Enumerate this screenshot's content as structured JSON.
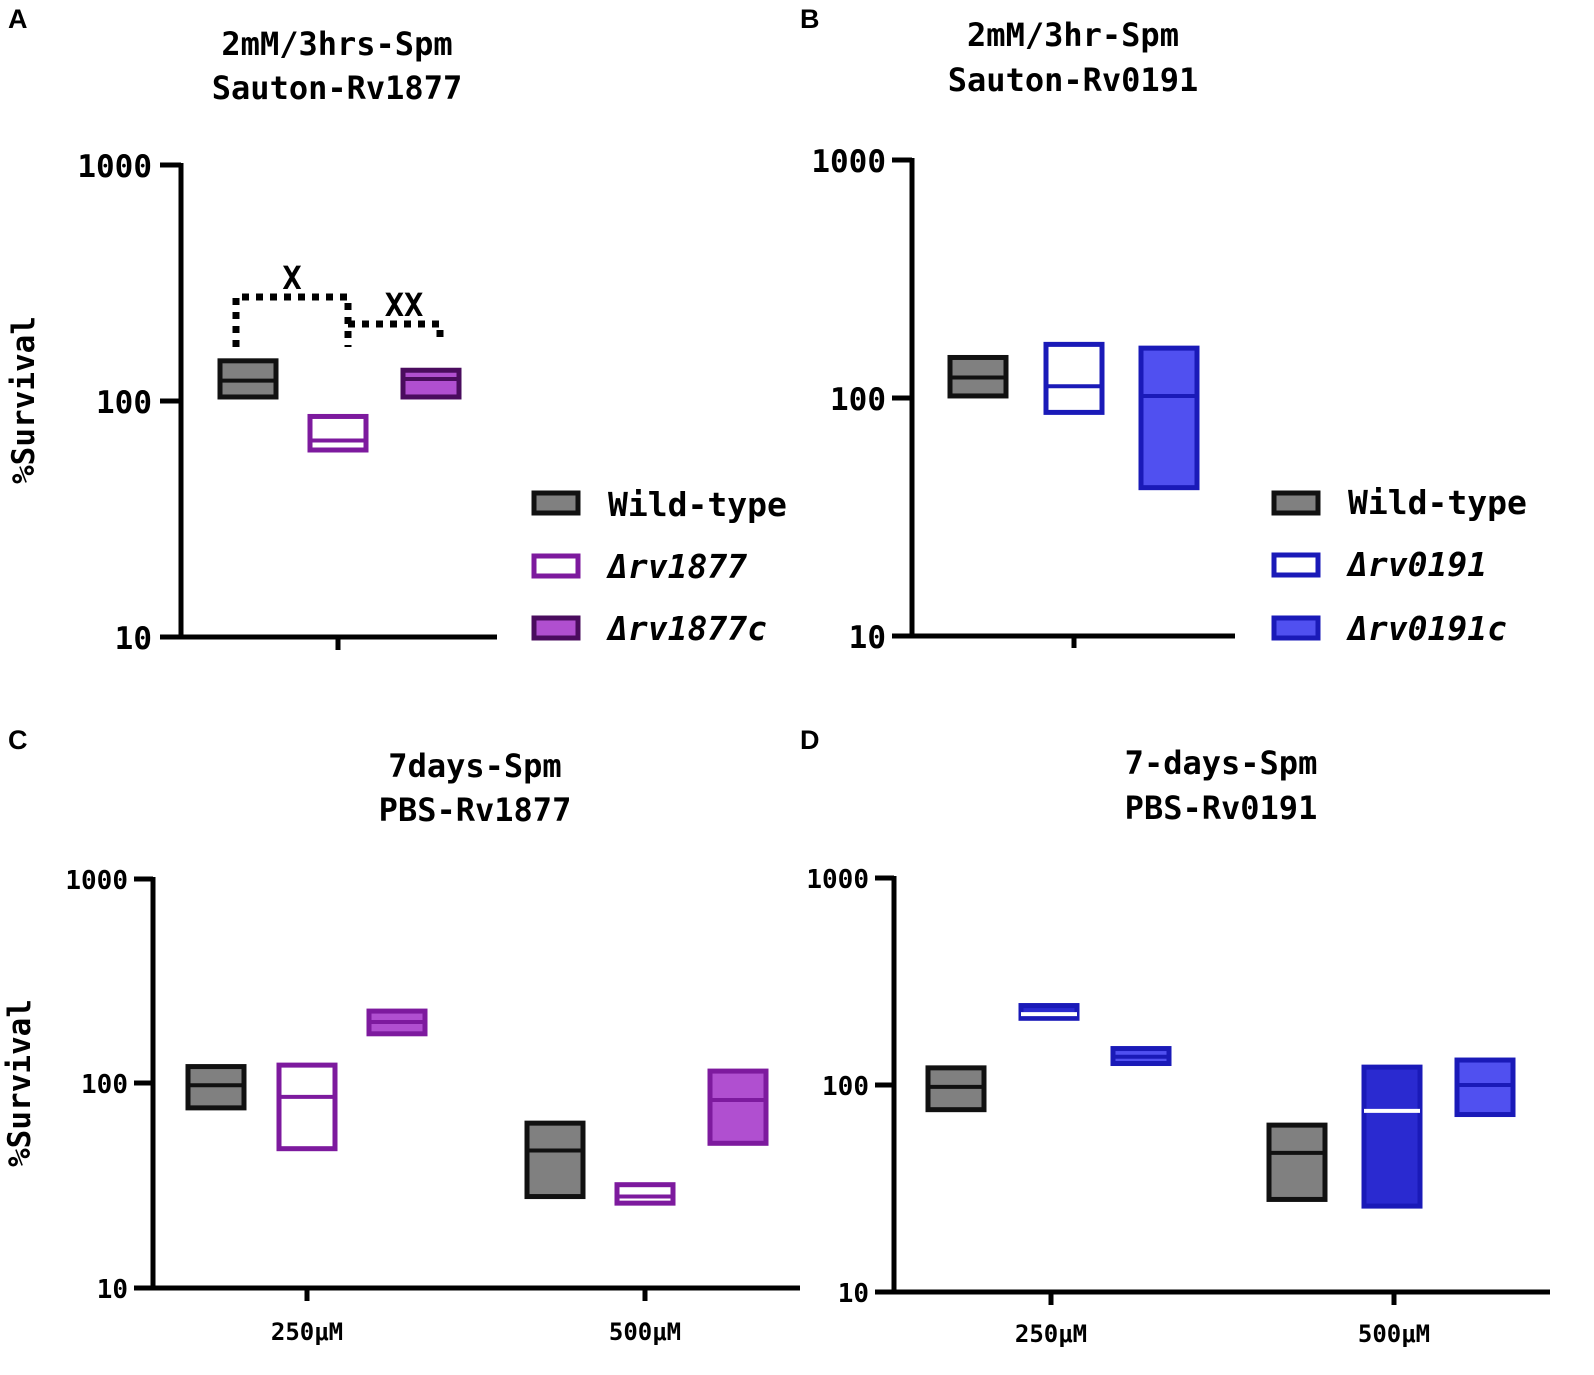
{
  "panels": [
    {
      "letter": "A",
      "title_line1": "2mM/3hrs-Spm",
      "title_line2": "Sauton-Rv1877",
      "ylabel": "%Survival",
      "xcategory": "",
      "significance": [
        "X",
        "XX"
      ],
      "legend": [
        "Wild-type",
        "Δrv1877",
        "Δrv1877c"
      ]
    },
    {
      "letter": "B",
      "title_line1": "2mM/3hr-Spm",
      "title_line2": "Sauton-Rv0191",
      "ylabel": "",
      "xcategory": "",
      "significance": [],
      "legend": [
        "Wild-type",
        "Δrv0191",
        "Δrv0191c"
      ]
    },
    {
      "letter": "C",
      "title_line1": "7days-Spm",
      "title_line2": "PBS-Rv1877",
      "ylabel": "%Survival",
      "xcategories": [
        "250μM",
        "500μM"
      ],
      "significance": [],
      "legend": []
    },
    {
      "letter": "D",
      "title_line1": "7-days-Spm",
      "title_line2": "PBS-Rv0191",
      "ylabel": "",
      "xcategories": [
        "250μM",
        "500μM"
      ],
      "significance": [],
      "legend": []
    }
  ],
  "colors": {
    "wildtype_edge": "#111111",
    "wildtype_fill": "#808080",
    "purple_edge": "#7d1a9e",
    "purple_fill": "#b04fd0",
    "purple_dark_fill": "#6a1a80",
    "blue_edge": "#1a1ab8",
    "blue_fill": "#5050f0"
  },
  "chart_data": [
    {
      "panel": "A",
      "type": "floating-bar",
      "yscale": "log",
      "ylim": [
        10,
        1000
      ],
      "yticks": [
        "10",
        "100",
        "1000"
      ],
      "title": "2mM/3hrs-Spm Sauton-Rv1877",
      "ylabel": "%Survival",
      "series": [
        {
          "name": "Wild-type",
          "min": 104,
          "median": 122,
          "max": 148,
          "style": "wildtype"
        },
        {
          "name": "Δrv1877",
          "min": 62,
          "median": 68,
          "max": 86,
          "style": "purple-open"
        },
        {
          "name": "Δrv1877c",
          "min": 104,
          "median": 124,
          "max": 135,
          "style": "purple-dark"
        }
      ],
      "annotations": [
        {
          "text": "X",
          "between": [
            "Wild-type",
            "Δrv1877"
          ]
        },
        {
          "text": "XX",
          "between": [
            "Δrv1877",
            "Δrv1877c"
          ]
        }
      ]
    },
    {
      "panel": "B",
      "type": "floating-bar",
      "yscale": "log",
      "ylim": [
        10,
        1000
      ],
      "yticks": [
        "10",
        "100",
        "1000"
      ],
      "title": "2mM/3hr-Spm Sauton-Rv0191",
      "series": [
        {
          "name": "Wild-type",
          "min": 102,
          "median": 122,
          "max": 148,
          "style": "wildtype"
        },
        {
          "name": "Δrv0191",
          "min": 87,
          "median": 112,
          "max": 168,
          "style": "blue-open"
        },
        {
          "name": "Δrv0191c",
          "min": 42,
          "median": 102,
          "max": 162,
          "style": "blue-filled"
        }
      ]
    },
    {
      "panel": "C",
      "type": "floating-bar",
      "yscale": "log",
      "ylim": [
        10,
        1000
      ],
      "yticks": [
        "10",
        "100",
        "1000"
      ],
      "title": "7days-Spm PBS-Rv1877",
      "ylabel": "%Survival",
      "categories": [
        "250μM",
        "500μM"
      ],
      "series": [
        {
          "name": "Wild-type",
          "values": [
            {
              "min": 76,
              "median": 98,
              "max": 121
            },
            {
              "min": 28,
              "median": 47,
              "max": 64
            }
          ],
          "style": "wildtype"
        },
        {
          "name": "Δrv1877",
          "values": [
            {
              "min": 48,
              "median": 86,
              "max": 123
            },
            {
              "min": 26,
              "median": 28,
              "max": 32
            }
          ],
          "style": "purple-open"
        },
        {
          "name": "Δrv1877c",
          "values": [
            {
              "min": 175,
              "median": 200,
              "max": 226
            },
            {
              "min": 51,
              "median": 83,
              "max": 115
            }
          ],
          "style": "purple-filled"
        }
      ]
    },
    {
      "panel": "D",
      "type": "floating-bar",
      "yscale": "log",
      "ylim": [
        10,
        1000
      ],
      "yticks": [
        "10",
        "100",
        "1000"
      ],
      "title": "7-days-Spm PBS-Rv0191",
      "categories": [
        "250μM",
        "500μM"
      ],
      "series": [
        {
          "name": "Wild-type",
          "values": [
            {
              "min": 76,
              "median": 98,
              "max": 121
            },
            {
              "min": 28,
              "median": 47,
              "max": 64
            }
          ],
          "style": "wildtype"
        },
        {
          "name": "Δrv0191",
          "values": [
            {
              "min": 210,
              "median": 220,
              "max": 242
            },
            {
              "min": 26,
              "median": 75,
              "max": 122
            }
          ],
          "style": "blue-filled-dark"
        },
        {
          "name": "Δrv0191c",
          "values": [
            {
              "min": 127,
              "median": 137,
              "max": 150
            },
            {
              "min": 72,
              "median": 100,
              "max": 132
            }
          ],
          "style": "blue-filled"
        }
      ]
    }
  ]
}
